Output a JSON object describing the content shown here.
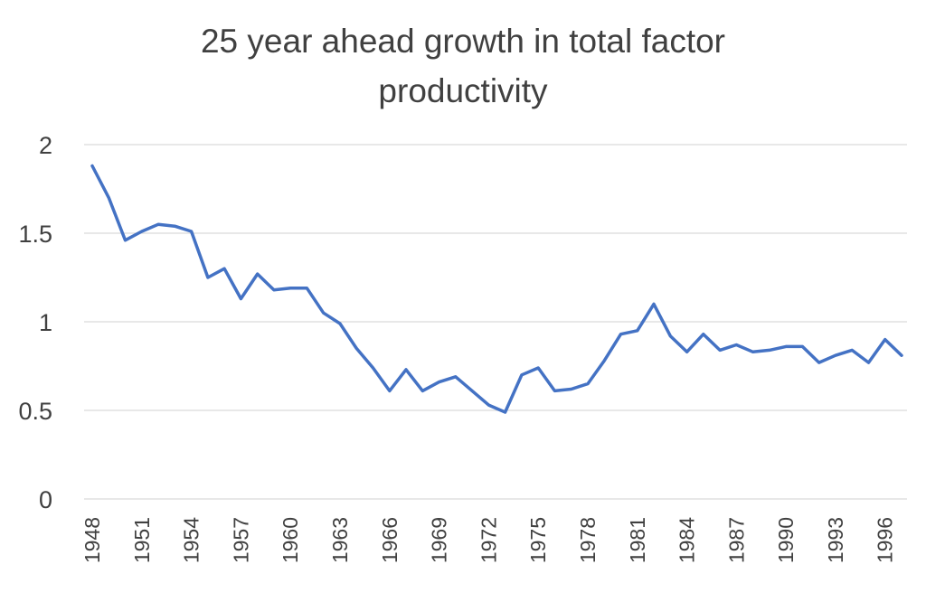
{
  "chart_data": {
    "type": "line",
    "title_lines": [
      "25 year ahead growth in total factor",
      "productivity"
    ],
    "xlabel": "",
    "ylabel": "",
    "ylim": [
      0,
      2
    ],
    "yticks": [
      "0",
      "0.5",
      "1",
      "1.5",
      "2"
    ],
    "grid": true,
    "legend": "none",
    "line_color": "#4472c4",
    "x_tick_labels": [
      "1948",
      "1951",
      "1954",
      "1957",
      "1960",
      "1963",
      "1966",
      "1969",
      "1972",
      "1975",
      "1978",
      "1981",
      "1984",
      "1987",
      "1990",
      "1993",
      "1996"
    ],
    "series": [
      {
        "x": [
          1948,
          1949,
          1950,
          1951,
          1952,
          1953,
          1954,
          1955,
          1956,
          1957,
          1958,
          1959,
          1960,
          1961,
          1962,
          1963,
          1964,
          1965,
          1966,
          1967,
          1968,
          1969,
          1970,
          1971,
          1972,
          1973,
          1974,
          1975,
          1976,
          1977,
          1978,
          1979,
          1980,
          1981,
          1982,
          1983,
          1984,
          1985,
          1986,
          1987,
          1988,
          1989,
          1990,
          1991,
          1992,
          1993,
          1994,
          1995,
          1996,
          1997
        ],
        "values": [
          1.88,
          1.7,
          1.46,
          1.51,
          1.55,
          1.54,
          1.51,
          1.25,
          1.3,
          1.13,
          1.27,
          1.18,
          1.19,
          1.19,
          1.05,
          0.99,
          0.85,
          0.74,
          0.61,
          0.73,
          0.61,
          0.66,
          0.69,
          0.61,
          0.53,
          0.49,
          0.7,
          0.74,
          0.61,
          0.62,
          0.65,
          0.78,
          0.93,
          0.95,
          1.1,
          0.92,
          0.83,
          0.93,
          0.84,
          0.87,
          0.83,
          0.84,
          0.86,
          0.86,
          0.77,
          0.81,
          0.84,
          0.77,
          0.9,
          0.81
        ]
      }
    ]
  }
}
